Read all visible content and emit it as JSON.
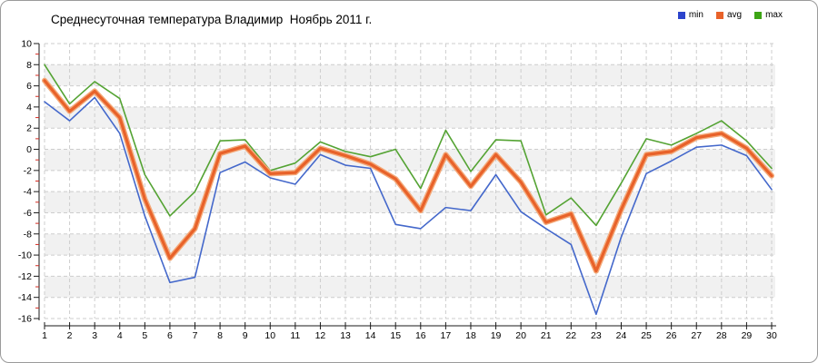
{
  "title": "Среднесуточная температура Владимир  Ноябрь 2011 г.",
  "legend": [
    {
      "label": "min",
      "color": "#2c44cc"
    },
    {
      "label": "avg",
      "color": "#e8622a"
    },
    {
      "label": "max",
      "color": "#3da515"
    }
  ],
  "chart_data": {
    "type": "line",
    "title": "Среднесуточная температура Владимир  Ноябрь 2011 г.",
    "xlabel": "",
    "ylabel": "",
    "x": [
      1,
      2,
      3,
      4,
      5,
      6,
      7,
      8,
      9,
      10,
      11,
      12,
      13,
      14,
      15,
      16,
      17,
      18,
      19,
      20,
      21,
      22,
      23,
      24,
      25,
      26,
      27,
      28,
      29,
      30
    ],
    "series": [
      {
        "name": "min",
        "color": "#4468cb",
        "width": 1.6,
        "values": [
          4.5,
          2.7,
          4.9,
          1.5,
          -6.3,
          -12.6,
          -12.1,
          -2.2,
          -1.2,
          -2.7,
          -3.3,
          -0.5,
          -1.5,
          -1.8,
          -7.1,
          -7.5,
          -5.5,
          -5.8,
          -2.4,
          -5.9,
          -7.5,
          -9.0,
          -15.6,
          -8.3,
          -2.3,
          -1.1,
          0.2,
          0.4,
          -0.6,
          -3.8
        ]
      },
      {
        "name": "avg",
        "color": "#e8622a",
        "halo": "#f4a979",
        "width": 3.2,
        "values": [
          6.5,
          3.6,
          5.5,
          3.0,
          -4.7,
          -10.3,
          -7.5,
          -0.4,
          0.3,
          -2.3,
          -2.2,
          0.1,
          -0.6,
          -1.4,
          -2.8,
          -5.8,
          -0.5,
          -3.5,
          -0.5,
          -3.1,
          -6.9,
          -6.1,
          -11.5,
          -5.7,
          -0.5,
          -0.2,
          1.1,
          1.5,
          0.1,
          -2.5
        ]
      },
      {
        "name": "max",
        "color": "#54a333",
        "width": 1.6,
        "values": [
          8.0,
          4.3,
          6.4,
          4.8,
          -2.4,
          -6.3,
          -4.0,
          0.8,
          0.9,
          -2.0,
          -1.3,
          0.7,
          -0.2,
          -0.7,
          0.0,
          -3.7,
          1.8,
          -2.1,
          0.9,
          0.8,
          -6.2,
          -4.6,
          -7.2,
          -3.2,
          1.0,
          0.4,
          1.5,
          2.7,
          0.8,
          -1.8
        ]
      }
    ],
    "ylim": [
      -16,
      10
    ],
    "ytick_step": 2,
    "yticks": [
      10,
      8,
      6,
      4,
      2,
      0,
      -2,
      -4,
      -6,
      -8,
      -10,
      -12,
      -14,
      -16
    ],
    "grid": "dashed",
    "legend_position": "top-right",
    "band_colors": [
      "#ffffff",
      "#f1f1f1"
    ],
    "grid_color": "#cdcdcd",
    "axis_color": "#1a1a1a",
    "minor_tick_color": "#d42a20",
    "tick_label_color": "#000000"
  }
}
